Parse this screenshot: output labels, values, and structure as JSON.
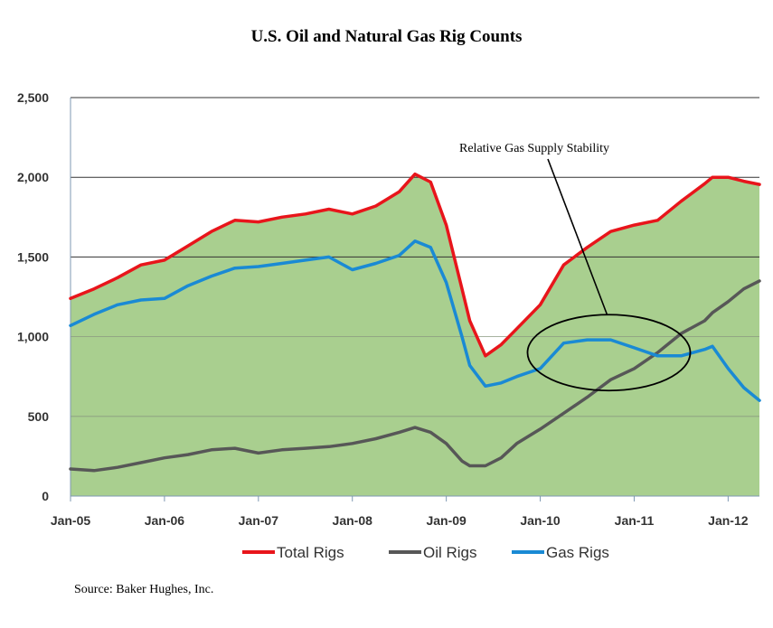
{
  "chart_data": {
    "type": "area",
    "title": "U.S. Oil and Natural Gas Rig Counts",
    "xlabel": "",
    "ylabel": "",
    "ylim": [
      0,
      2500
    ],
    "yticks": [
      "0",
      "500",
      "1,000",
      "1,500",
      "2,000",
      "2,500"
    ],
    "xlim": [
      "2005-01",
      "2012-05"
    ],
    "xticks": [
      "Jan-05",
      "Jan-06",
      "Jan-07",
      "Jan-08",
      "Jan-09",
      "Jan-10",
      "Jan-11",
      "Jan-12"
    ],
    "grid": "horizontal",
    "background_fill": "#a9cf8f",
    "legend_position": "bottom",
    "annotation": {
      "text": "Relative Gas Supply Stability",
      "target_x": "2010-10",
      "target_y": 900
    },
    "x": [
      "2005-01",
      "2005-04",
      "2005-07",
      "2005-10",
      "2006-01",
      "2006-04",
      "2006-07",
      "2006-10",
      "2007-01",
      "2007-04",
      "2007-07",
      "2007-10",
      "2008-01",
      "2008-04",
      "2008-07",
      "2008-09",
      "2008-11",
      "2009-01",
      "2009-03",
      "2009-04",
      "2009-06",
      "2009-08",
      "2009-10",
      "2010-01",
      "2010-04",
      "2010-07",
      "2010-10",
      "2011-01",
      "2011-04",
      "2011-07",
      "2011-10",
      "2011-11",
      "2012-01",
      "2012-03",
      "2012-05"
    ],
    "series": [
      {
        "name": "Total Rigs",
        "color": "#e8151b",
        "values": [
          1240,
          1300,
          1370,
          1450,
          1480,
          1570,
          1660,
          1730,
          1720,
          1750,
          1770,
          1800,
          1770,
          1820,
          1910,
          2020,
          1970,
          1700,
          1300,
          1100,
          880,
          950,
          1050,
          1200,
          1450,
          1560,
          1660,
          1700,
          1730,
          1850,
          1960,
          2000,
          2000,
          1975,
          1955
        ]
      },
      {
        "name": "Oil Rigs",
        "color": "#575757",
        "values": [
          170,
          160,
          180,
          210,
          240,
          260,
          290,
          300,
          270,
          290,
          300,
          310,
          330,
          360,
          400,
          430,
          400,
          330,
          220,
          190,
          190,
          240,
          330,
          420,
          520,
          620,
          730,
          800,
          900,
          1020,
          1100,
          1150,
          1220,
          1300,
          1350
        ]
      },
      {
        "name": "Gas Rigs",
        "color": "#1a8ad4",
        "values": [
          1070,
          1140,
          1200,
          1230,
          1240,
          1320,
          1380,
          1430,
          1440,
          1460,
          1480,
          1500,
          1420,
          1460,
          1510,
          1600,
          1560,
          1340,
          1000,
          820,
          690,
          710,
          750,
          800,
          960,
          980,
          980,
          930,
          880,
          880,
          920,
          940,
          800,
          680,
          600
        ]
      }
    ]
  },
  "source_note": "Source: Baker Hughes, Inc."
}
